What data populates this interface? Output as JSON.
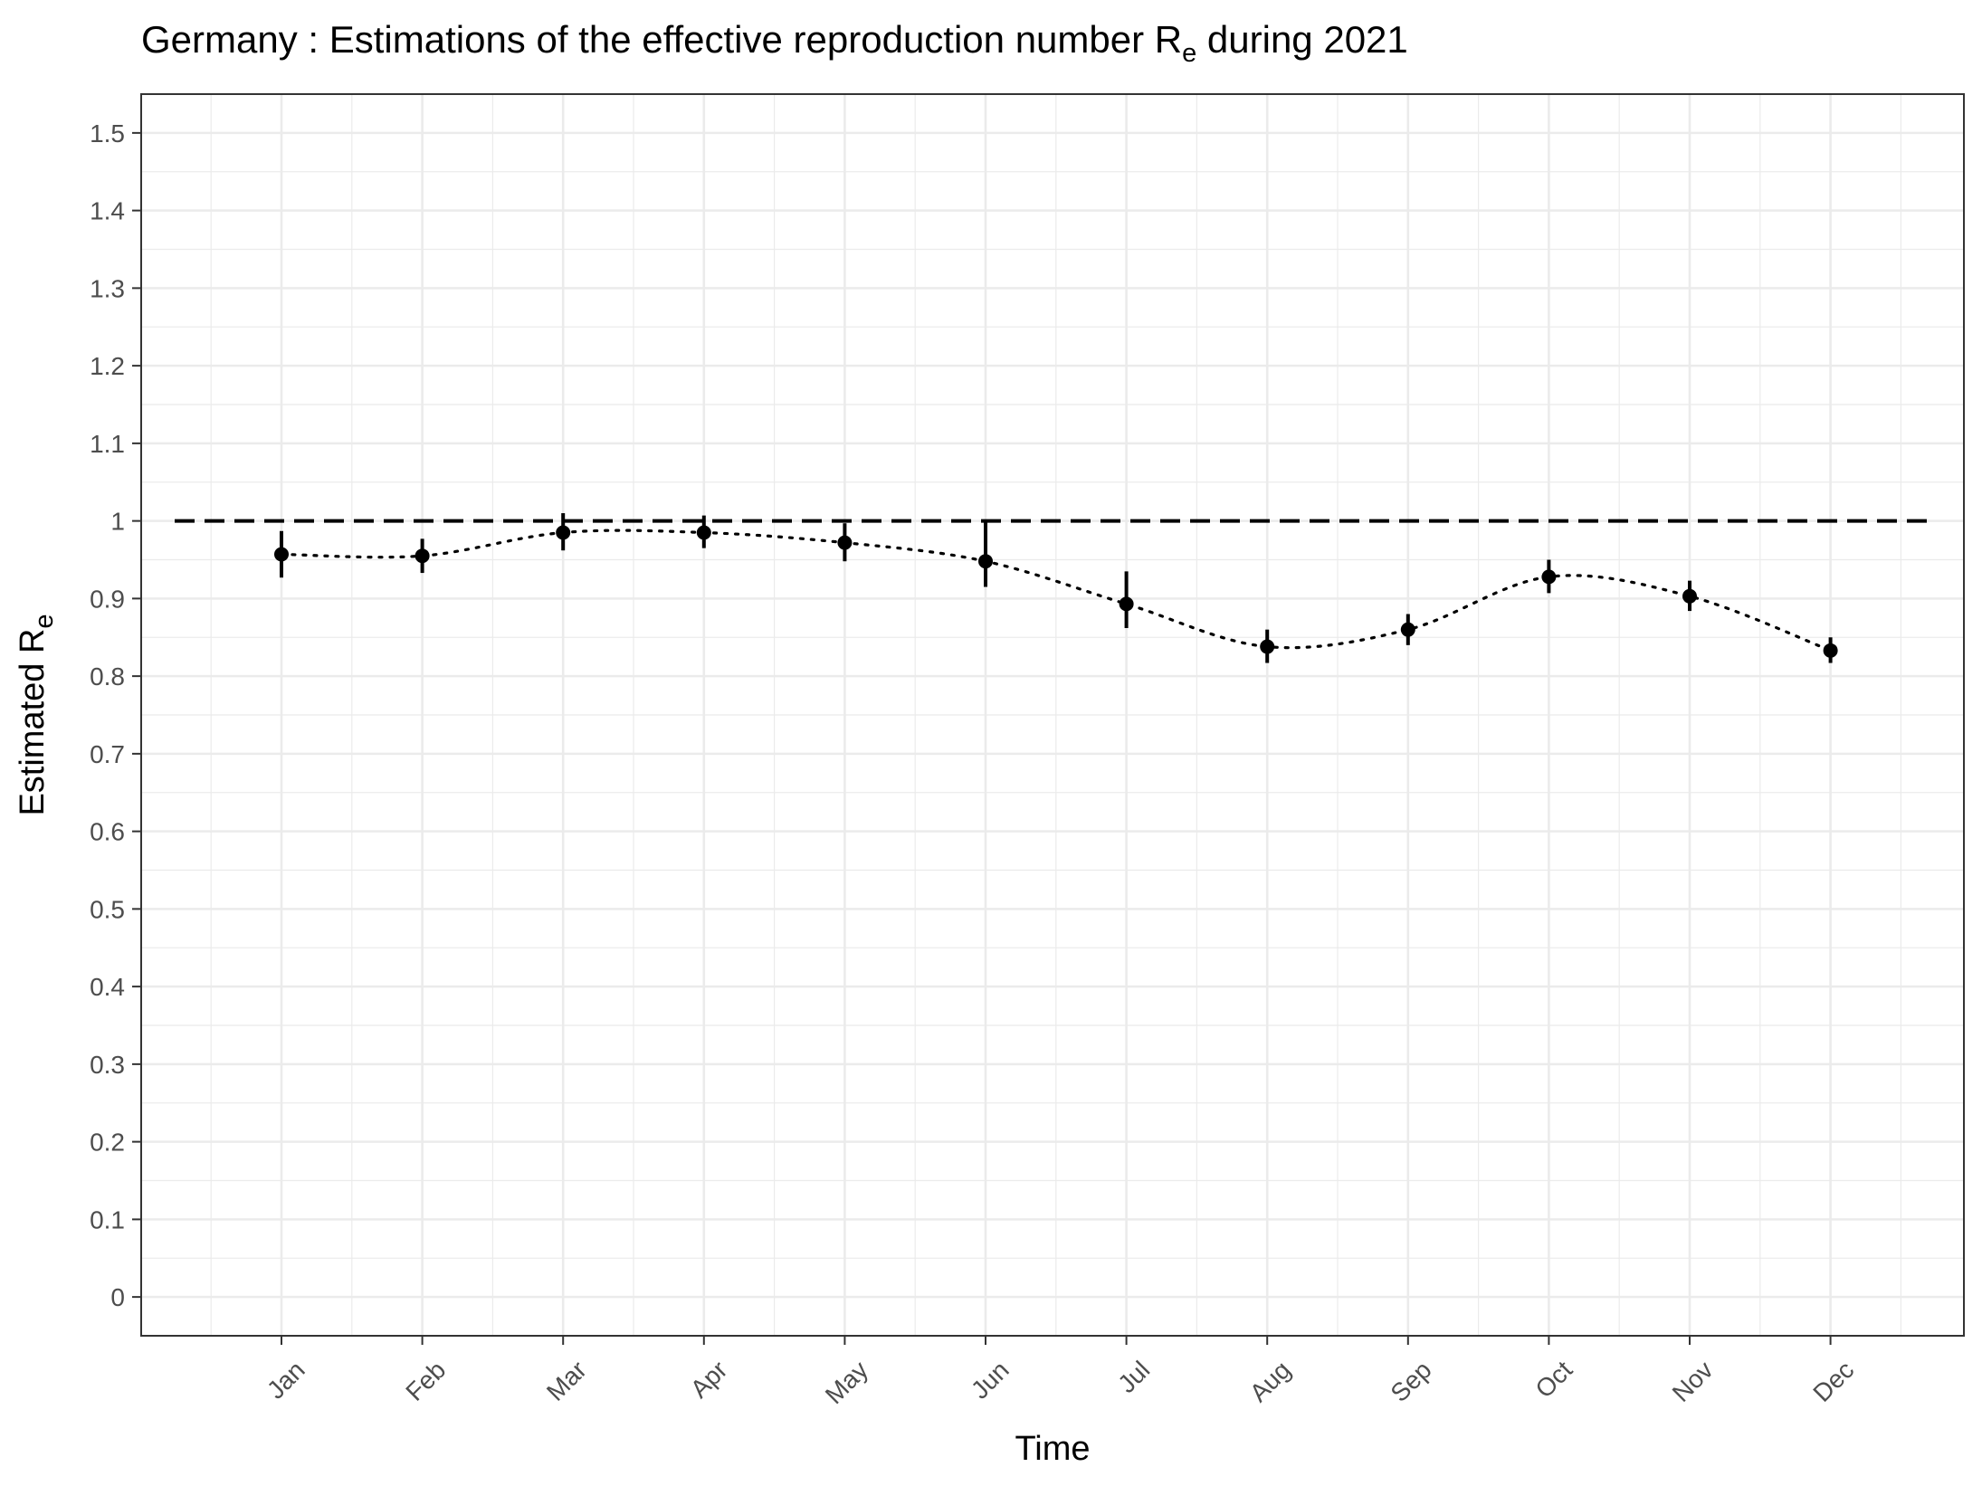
{
  "chart_data": {
    "type": "scatter",
    "title": "Germany : Estimations of the effective reproduction number R",
    "title_subscript": "e",
    "title_suffix": " during 2021",
    "xlabel": "Time",
    "ylabel": "Estimated R",
    "ylabel_subscript": "e",
    "categories": [
      "Jan",
      "Feb",
      "Mar",
      "Apr",
      "May",
      "Jun",
      "Jul",
      "Aug",
      "Sep",
      "Oct",
      "Nov",
      "Dec"
    ],
    "values": [
      0.957,
      0.955,
      0.985,
      0.985,
      0.972,
      0.948,
      0.893,
      0.838,
      0.86,
      0.928,
      0.903,
      0.833
    ],
    "lower": [
      0.927,
      0.933,
      0.962,
      0.965,
      0.948,
      0.915,
      0.862,
      0.817,
      0.84,
      0.907,
      0.884,
      0.817
    ],
    "upper": [
      0.987,
      0.977,
      1.01,
      1.007,
      0.997,
      0.998,
      0.935,
      0.86,
      0.88,
      0.95,
      0.923,
      0.85
    ],
    "connector": "dotted",
    "reference_line": {
      "y": 1,
      "style": "dashed"
    },
    "ylim": [
      -0.05,
      1.55
    ],
    "yticks": [
      0,
      0.1,
      0.2,
      0.3,
      0.4,
      0.5,
      0.6,
      0.7,
      0.8,
      0.9,
      1,
      1.1,
      1.2,
      1.3,
      1.4,
      1.5
    ],
    "ytick_labels": [
      "0",
      "0.1",
      "0.2",
      "0.3",
      "0.4",
      "0.5",
      "0.6",
      "0.7",
      "0.8",
      "0.9",
      "1",
      "1.1",
      "1.2",
      "1.3",
      "1.4",
      "1.5"
    ],
    "grid": true,
    "legend": "none",
    "colors": {
      "marks": "#000000",
      "grid": "#ebebeb",
      "panel_border": "#333333",
      "tick_text": "#4d4d4d"
    }
  }
}
